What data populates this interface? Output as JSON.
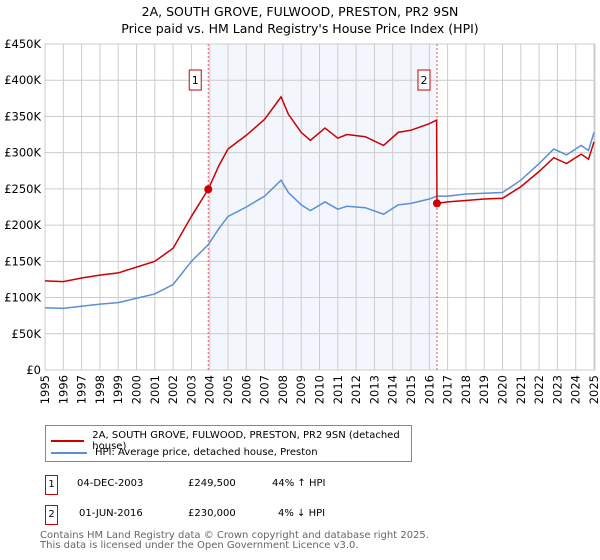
{
  "chart_data": {
    "type": "line",
    "title": "2A, SOUTH GROVE, FULWOOD, PRESTON, PR2 9SN",
    "subtitle": "Price paid vs. HM Land Registry's House Price Index (HPI)",
    "xlim": [
      1995,
      2025.1
    ],
    "ylim": [
      0,
      450000
    ],
    "yticks": [
      0,
      50000,
      100000,
      150000,
      200000,
      250000,
      300000,
      350000,
      400000,
      450000
    ],
    "ytick_labels": [
      "£0",
      "£50K",
      "£100K",
      "£150K",
      "£200K",
      "£250K",
      "£300K",
      "£350K",
      "£400K",
      "£450K"
    ],
    "xticks": [
      1995,
      1996,
      1997,
      1998,
      1999,
      2000,
      2001,
      2002,
      2003,
      2004,
      2005,
      2006,
      2007,
      2008,
      2009,
      2010,
      2011,
      2012,
      2013,
      2014,
      2015,
      2016,
      2017,
      2018,
      2019,
      2020,
      2021,
      2022,
      2023,
      2024,
      2025
    ],
    "grid": true,
    "shaded_range": [
      2003.92,
      2016.42
    ],
    "series": [
      {
        "name": "2A, SOUTH GROVE, FULWOOD, PRESTON, PR2 9SN (detached house)",
        "color": "#cc0000",
        "x": [
          1995,
          1996,
          1997,
          1998,
          1999,
          2000,
          2001,
          2002,
          2003,
          2003.92,
          2004.5,
          2005,
          2006,
          2007,
          2007.9,
          2008.3,
          2009,
          2009.5,
          2010.3,
          2011,
          2011.5,
          2012.5,
          2013.5,
          2014.3,
          2015,
          2016,
          2016.4,
          2016.42,
          2017,
          2018,
          2019,
          2020,
          2021,
          2022,
          2022.8,
          2023.5,
          2024.3,
          2024.7,
          2025
        ],
        "y": [
          123000,
          122000,
          127000,
          131000,
          134000,
          142000,
          150000,
          168000,
          212000,
          249500,
          282000,
          305000,
          324000,
          346000,
          377000,
          353000,
          328000,
          317000,
          334000,
          320000,
          325000,
          322000,
          310000,
          328000,
          331000,
          340000,
          345000,
          230000,
          232000,
          234000,
          236000,
          237000,
          253000,
          274000,
          293000,
          285000,
          298000,
          291000,
          315000
        ]
      },
      {
        "name": "HPI: Average price, detached house, Preston",
        "color": "#5b8fd4",
        "x": [
          1995,
          1996,
          1997,
          1998,
          1999,
          2000,
          2001,
          2002,
          2003,
          2003.92,
          2004.5,
          2005,
          2006,
          2007,
          2007.9,
          2008.3,
          2009,
          2009.5,
          2010.3,
          2011,
          2011.5,
          2012.5,
          2013.5,
          2014.3,
          2015,
          2016,
          2016.42,
          2017,
          2018,
          2019,
          2020,
          2021,
          2022,
          2022.8,
          2023.5,
          2024.3,
          2024.7,
          2025
        ],
        "y": [
          86000,
          85000,
          88000,
          91000,
          93000,
          99000,
          105000,
          118000,
          150000,
          173000,
          195000,
          212000,
          225000,
          240000,
          262000,
          245000,
          228000,
          220000,
          232000,
          222000,
          226000,
          224000,
          215000,
          228000,
          230000,
          236000,
          240000,
          240000,
          243000,
          244000,
          245000,
          262000,
          285000,
          305000,
          297000,
          310000,
          303000,
          328000
        ]
      }
    ],
    "sales": [
      {
        "label": "1",
        "x": 2003.92,
        "y": 249500,
        "date": "04-DEC-2003",
        "price": "£249,500",
        "hpi": "44% ↑ HPI"
      },
      {
        "label": "2",
        "x": 2016.42,
        "y": 230000,
        "date": "01-JUN-2016",
        "price": "£230,000",
        "hpi": "4% ↓ HPI"
      }
    ]
  },
  "footer": {
    "line1": "Contains HM Land Registry data © Crown copyright and database right 2025.",
    "line2": "This data is licensed under the Open Government Licence v3.0."
  }
}
